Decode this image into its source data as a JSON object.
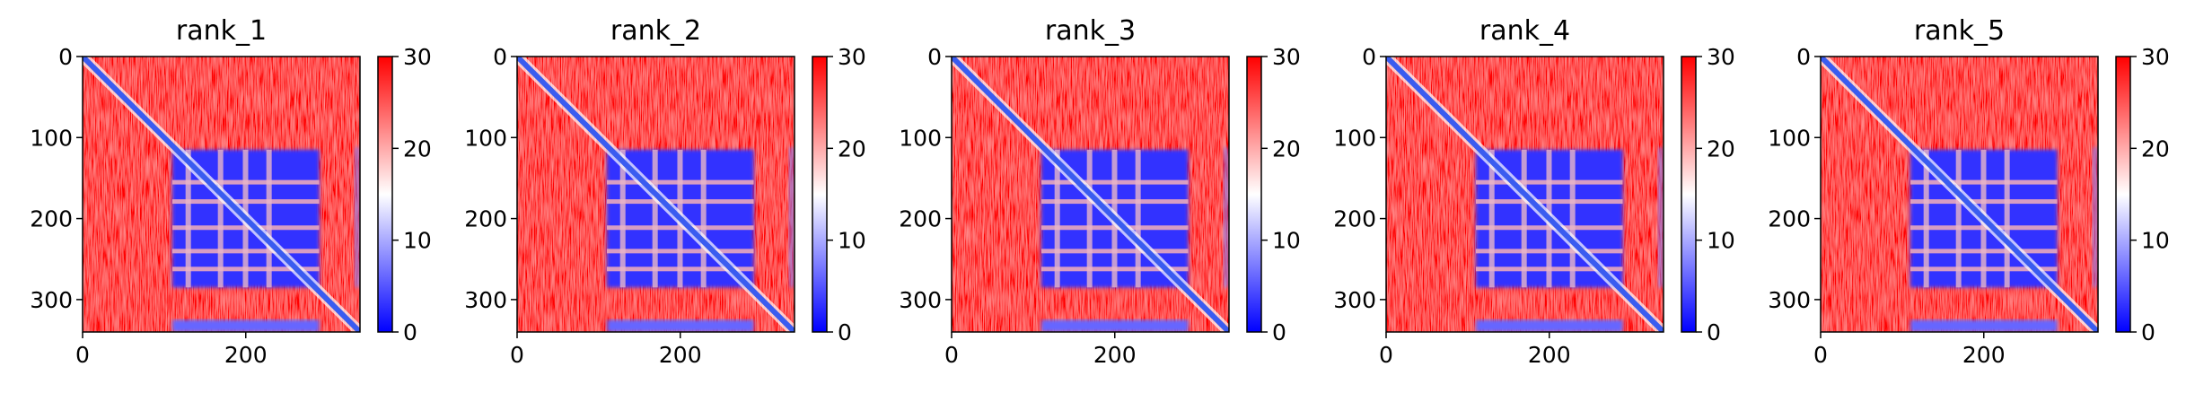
{
  "colors": {
    "low": "#0000ff",
    "mid": "#ffffff",
    "high": "#ff0000",
    "diagonal": "#3a5cf0"
  },
  "chart_data": [
    {
      "type": "heatmap",
      "title": "rank_1",
      "x_ticks": [
        "0",
        "200"
      ],
      "y_ticks": [
        "0",
        "100",
        "200",
        "300"
      ],
      "xlim": [
        0,
        340
      ],
      "ylim": [
        340,
        0
      ],
      "colorbar": {
        "ticks": [
          "0",
          "10",
          "20",
          "30"
        ],
        "range": [
          0,
          30
        ],
        "cmap": "bwr"
      },
      "blocks": [
        {
          "x": [
            110,
            290
          ],
          "y": [
            115,
            285
          ],
          "value": 3
        },
        {
          "x": [
            110,
            290
          ],
          "y": [
            325,
            340
          ],
          "value": 6
        }
      ]
    },
    {
      "type": "heatmap",
      "title": "rank_2",
      "x_ticks": [
        "0",
        "200"
      ],
      "y_ticks": [
        "0",
        "100",
        "200",
        "300"
      ],
      "xlim": [
        0,
        340
      ],
      "ylim": [
        340,
        0
      ],
      "colorbar": {
        "ticks": [
          "0",
          "10",
          "20",
          "30"
        ],
        "range": [
          0,
          30
        ],
        "cmap": "bwr"
      },
      "blocks": [
        {
          "x": [
            110,
            290
          ],
          "y": [
            115,
            285
          ],
          "value": 3
        },
        {
          "x": [
            110,
            290
          ],
          "y": [
            325,
            340
          ],
          "value": 6
        }
      ]
    },
    {
      "type": "heatmap",
      "title": "rank_3",
      "x_ticks": [
        "0",
        "200"
      ],
      "y_ticks": [
        "0",
        "100",
        "200",
        "300"
      ],
      "xlim": [
        0,
        340
      ],
      "ylim": [
        340,
        0
      ],
      "colorbar": {
        "ticks": [
          "0",
          "10",
          "20",
          "30"
        ],
        "range": [
          0,
          30
        ],
        "cmap": "bwr"
      },
      "blocks": [
        {
          "x": [
            110,
            290
          ],
          "y": [
            115,
            285
          ],
          "value": 3
        },
        {
          "x": [
            110,
            290
          ],
          "y": [
            325,
            340
          ],
          "value": 6
        }
      ]
    },
    {
      "type": "heatmap",
      "title": "rank_4",
      "x_ticks": [
        "0",
        "200"
      ],
      "y_ticks": [
        "0",
        "100",
        "200",
        "300"
      ],
      "xlim": [
        0,
        340
      ],
      "ylim": [
        340,
        0
      ],
      "colorbar": {
        "ticks": [
          "0",
          "10",
          "20",
          "30"
        ],
        "range": [
          0,
          30
        ],
        "cmap": "bwr"
      },
      "blocks": [
        {
          "x": [
            110,
            290
          ],
          "y": [
            115,
            285
          ],
          "value": 3
        },
        {
          "x": [
            110,
            290
          ],
          "y": [
            325,
            340
          ],
          "value": 6
        }
      ]
    },
    {
      "type": "heatmap",
      "title": "rank_5",
      "x_ticks": [
        "0",
        "200"
      ],
      "y_ticks": [
        "0",
        "100",
        "200",
        "300"
      ],
      "xlim": [
        0,
        340
      ],
      "ylim": [
        340,
        0
      ],
      "colorbar": {
        "ticks": [
          "0",
          "10",
          "20",
          "30"
        ],
        "range": [
          0,
          30
        ],
        "cmap": "bwr"
      },
      "blocks": [
        {
          "x": [
            110,
            290
          ],
          "y": [
            115,
            285
          ],
          "value": 3
        },
        {
          "x": [
            110,
            290
          ],
          "y": [
            325,
            340
          ],
          "value": 6
        }
      ]
    }
  ]
}
